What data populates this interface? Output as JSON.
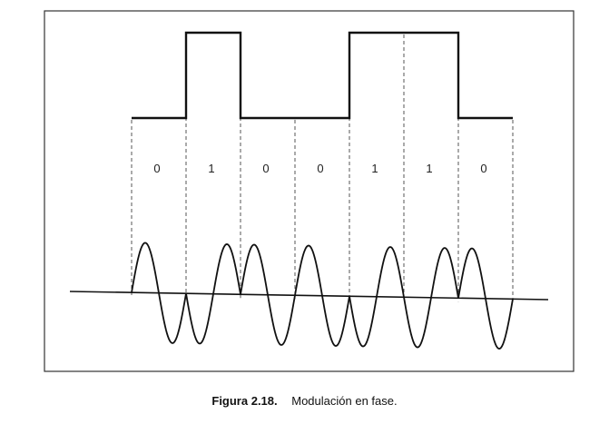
{
  "figure": {
    "title": "Modulación en fase",
    "bits": [
      "0",
      "1",
      "0",
      "0",
      "1",
      "1",
      "0"
    ],
    "phases": [
      "0°",
      "180°",
      "0°",
      "0°",
      "180°",
      "180°",
      "0°"
    ],
    "cycles_per_bit": 1
  },
  "caption": {
    "number": "Figura 2.18.",
    "text": "Modulación en fase."
  }
}
